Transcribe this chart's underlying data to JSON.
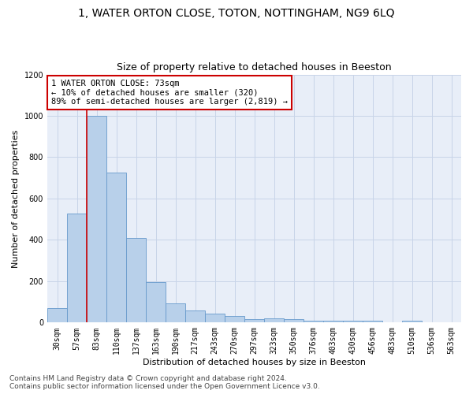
{
  "title_line1": "1, WATER ORTON CLOSE, TOTON, NOTTINGHAM, NG9 6LQ",
  "title_line2": "Size of property relative to detached houses in Beeston",
  "xlabel": "Distribution of detached houses by size in Beeston",
  "ylabel": "Number of detached properties",
  "bar_labels": [
    "30sqm",
    "57sqm",
    "83sqm",
    "110sqm",
    "137sqm",
    "163sqm",
    "190sqm",
    "217sqm",
    "243sqm",
    "270sqm",
    "297sqm",
    "323sqm",
    "350sqm",
    "376sqm",
    "403sqm",
    "430sqm",
    "456sqm",
    "483sqm",
    "510sqm",
    "536sqm",
    "563sqm"
  ],
  "bar_values": [
    68,
    527,
    1000,
    727,
    408,
    197,
    92,
    60,
    42,
    33,
    18,
    20,
    18,
    8,
    8,
    8,
    8,
    0,
    10,
    0,
    0
  ],
  "bar_color": "#b8d0ea",
  "bar_edge_color": "#6699cc",
  "vline_color": "#cc0000",
  "annotation_text": "1 WATER ORTON CLOSE: 73sqm\n← 10% of detached houses are smaller (320)\n89% of semi-detached houses are larger (2,819) →",
  "annotation_box_color": "#cc0000",
  "ylim": [
    0,
    1200
  ],
  "yticks": [
    0,
    200,
    400,
    600,
    800,
    1000,
    1200
  ],
  "grid_color": "#c8d4e8",
  "bg_color": "#e8eef8",
  "footer_line1": "Contains HM Land Registry data © Crown copyright and database right 2024.",
  "footer_line2": "Contains public sector information licensed under the Open Government Licence v3.0.",
  "title_fontsize": 10,
  "subtitle_fontsize": 9,
  "axis_label_fontsize": 8,
  "tick_fontsize": 7,
  "annotation_fontsize": 7.5,
  "footer_fontsize": 6.5
}
